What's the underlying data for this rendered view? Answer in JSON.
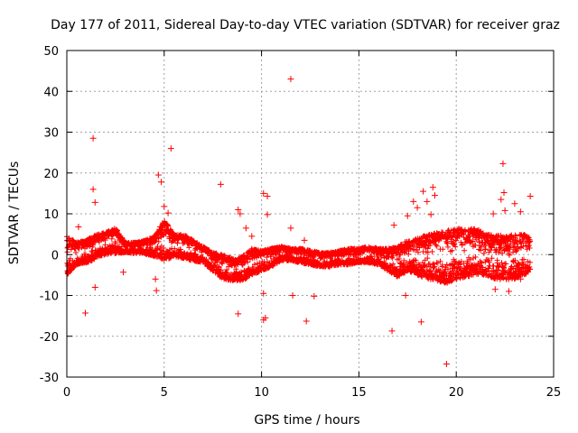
{
  "chart_data": {
    "type": "scatter",
    "title": "Day 177 of 2011, Sidereal Day-to-day VTEC variation (SDTVAR) for receiver graz",
    "xlabel": "GPS time / hours",
    "ylabel": "SDTVAR / TECUs",
    "xlim": [
      0,
      25
    ],
    "ylim": [
      -30,
      50
    ],
    "xticks": [
      0,
      5,
      10,
      15,
      20,
      25
    ],
    "yticks": [
      -30,
      -20,
      -10,
      0,
      10,
      20,
      30,
      40,
      50
    ],
    "grid": true,
    "marker": "+",
    "series": [
      {
        "name": "SDTVAR",
        "color": "#ff0000",
        "band": {
          "x": [
            0.0,
            0.5,
            1.0,
            1.3,
            1.6,
            2.0,
            2.5,
            3.0,
            3.5,
            4.0,
            4.5,
            4.8,
            5.0,
            5.5,
            6.0,
            6.5,
            7.0,
            7.5,
            8.0,
            8.5,
            9.0,
            9.5,
            10.0,
            10.5,
            11.0,
            11.5,
            12.0,
            12.5,
            13.0,
            13.5,
            14.0,
            14.5,
            15.0,
            15.5,
            16.0,
            16.5,
            17.0,
            17.5,
            18.0,
            18.5,
            19.0,
            19.5,
            20.0,
            20.5,
            21.0,
            21.5,
            22.0,
            22.5,
            23.0,
            23.5,
            23.8
          ],
          "low": [
            -5.0,
            -2.5,
            -2.0,
            -1.5,
            -0.5,
            0.0,
            0.3,
            0.5,
            0.3,
            0.2,
            -0.5,
            -1.0,
            -1.5,
            -0.5,
            -1.0,
            -1.5,
            -2.0,
            -4.0,
            -6.0,
            -6.5,
            -6.5,
            -5.0,
            -4.0,
            -3.0,
            -1.5,
            -1.5,
            -2.0,
            -2.5,
            -3.0,
            -3.0,
            -2.5,
            -2.5,
            -2.0,
            -2.0,
            -2.5,
            -4.0,
            -5.5,
            -4.0,
            -5.0,
            -6.0,
            -6.5,
            -7.0,
            -6.0,
            -5.5,
            -5.0,
            -5.0,
            -6.0,
            -6.5,
            -6.0,
            -5.0,
            -4.0
          ],
          "high": [
            4.5,
            3.0,
            3.5,
            4.5,
            5.0,
            5.5,
            6.5,
            3.0,
            3.0,
            3.5,
            4.5,
            7.0,
            8.5,
            5.0,
            5.0,
            3.5,
            2.0,
            0.5,
            0.0,
            -1.0,
            -0.5,
            1.5,
            1.0,
            1.5,
            2.0,
            1.5,
            1.5,
            1.0,
            0.5,
            0.5,
            1.0,
            1.5,
            1.5,
            2.0,
            1.5,
            1.5,
            2.0,
            3.5,
            4.0,
            5.0,
            5.5,
            6.0,
            6.5,
            6.0,
            6.5,
            5.0,
            5.0,
            4.5,
            5.0,
            5.0,
            4.0
          ]
        },
        "outliers": [
          {
            "x": 11.5,
            "y": 43.0
          },
          {
            "x": 1.35,
            "y": 28.5
          },
          {
            "x": 5.35,
            "y": 26.0
          },
          {
            "x": 22.4,
            "y": 22.3
          },
          {
            "x": 4.7,
            "y": 19.5
          },
          {
            "x": 4.85,
            "y": 17.8
          },
          {
            "x": 7.9,
            "y": 17.2
          },
          {
            "x": 18.8,
            "y": 16.5
          },
          {
            "x": 1.35,
            "y": 16.0
          },
          {
            "x": 18.3,
            "y": 15.5
          },
          {
            "x": 10.1,
            "y": 15.0
          },
          {
            "x": 22.45,
            "y": 15.2
          },
          {
            "x": 18.9,
            "y": 14.5
          },
          {
            "x": 10.3,
            "y": 14.3
          },
          {
            "x": 23.8,
            "y": 14.3
          },
          {
            "x": 22.3,
            "y": 13.5
          },
          {
            "x": 23.0,
            "y": 12.5
          },
          {
            "x": 1.45,
            "y": 12.8
          },
          {
            "x": 18.5,
            "y": 13.0
          },
          {
            "x": 17.8,
            "y": 13.0
          },
          {
            "x": 5.0,
            "y": 11.8
          },
          {
            "x": 8.8,
            "y": 11.0
          },
          {
            "x": 18.0,
            "y": 11.5
          },
          {
            "x": 5.2,
            "y": 10.2
          },
          {
            "x": 17.5,
            "y": 9.5
          },
          {
            "x": 18.7,
            "y": 9.8
          },
          {
            "x": 8.9,
            "y": 10.0
          },
          {
            "x": 10.3,
            "y": 9.8
          },
          {
            "x": 23.3,
            "y": 10.5
          },
          {
            "x": 21.9,
            "y": 10.0
          },
          {
            "x": 22.5,
            "y": 10.8
          },
          {
            "x": 16.8,
            "y": 7.2
          },
          {
            "x": 11.5,
            "y": 6.5
          },
          {
            "x": 9.2,
            "y": 6.5
          },
          {
            "x": 0.6,
            "y": 6.8
          },
          {
            "x": 9.5,
            "y": 4.5
          },
          {
            "x": 12.2,
            "y": 3.5
          },
          {
            "x": 2.9,
            "y": -4.3
          },
          {
            "x": 1.45,
            "y": -8.0
          },
          {
            "x": 4.6,
            "y": -8.8
          },
          {
            "x": 4.55,
            "y": -6.0
          },
          {
            "x": 10.1,
            "y": -9.5
          },
          {
            "x": 11.6,
            "y": -10.0
          },
          {
            "x": 12.7,
            "y": -10.2
          },
          {
            "x": 17.4,
            "y": -10.0
          },
          {
            "x": 0.95,
            "y": -14.3
          },
          {
            "x": 8.8,
            "y": -14.5
          },
          {
            "x": 10.2,
            "y": -15.5
          },
          {
            "x": 10.1,
            "y": -16.0
          },
          {
            "x": 12.3,
            "y": -16.3
          },
          {
            "x": 18.2,
            "y": -16.5
          },
          {
            "x": 16.7,
            "y": -18.7
          },
          {
            "x": 19.5,
            "y": -26.8
          },
          {
            "x": 22.0,
            "y": -8.5
          },
          {
            "x": 22.7,
            "y": -9.0
          },
          {
            "x": 23.3,
            "y": -6.0
          }
        ]
      }
    ]
  }
}
